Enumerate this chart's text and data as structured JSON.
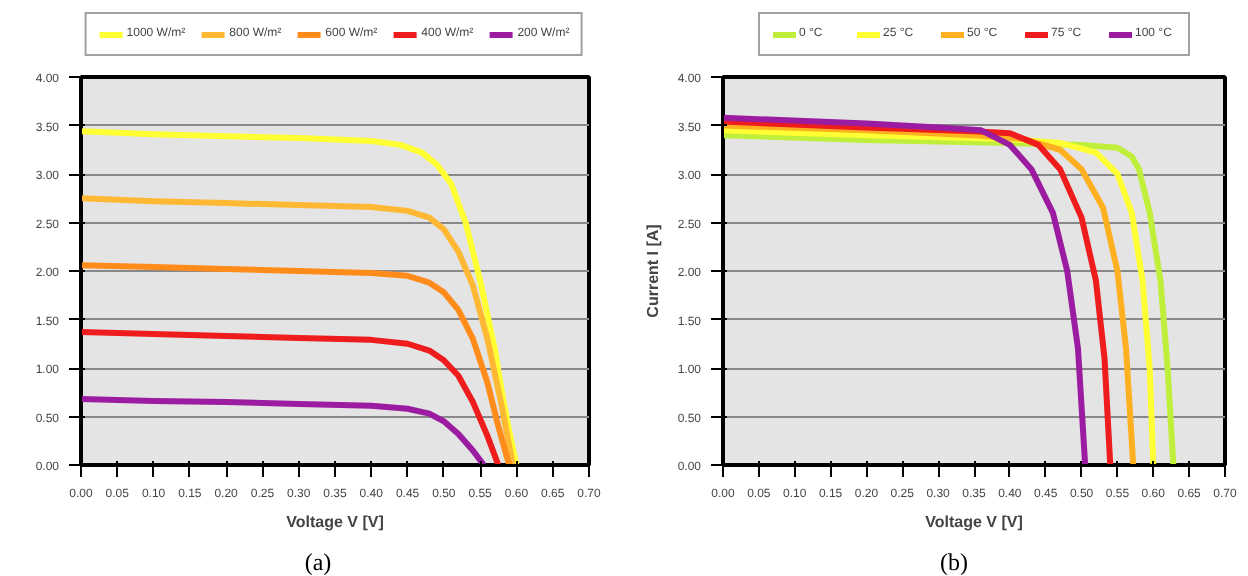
{
  "chart_data": [
    {
      "type": "line",
      "xlabel": "Voltage V [V]",
      "annotations": [
        "(a)"
      ],
      "grid": "y",
      "legend": "top",
      "xlim": [
        0,
        0.7
      ],
      "ylim": [
        0,
        4
      ],
      "xticks": [
        {
          "value": 0,
          "label": "0.00"
        },
        {
          "value": 0.05,
          "label": "0.05"
        },
        {
          "value": 0.1,
          "label": "0.10"
        },
        {
          "value": 0.15,
          "label": "0.15"
        },
        {
          "value": 0.2,
          "label": "0.20"
        },
        {
          "value": 0.25,
          "label": "0.25"
        },
        {
          "value": 0.3,
          "label": "0.30"
        },
        {
          "value": 0.35,
          "label": "0.35"
        },
        {
          "value": 0.4,
          "label": "0.40"
        },
        {
          "value": 0.45,
          "label": "0.45"
        },
        {
          "value": 0.5,
          "label": "0.50"
        },
        {
          "value": 0.55,
          "label": "0.55"
        },
        {
          "value": 0.6,
          "label": "0.60"
        },
        {
          "value": 0.65,
          "label": "0.65"
        },
        {
          "value": 0.7,
          "label": "0.70"
        }
      ],
      "yticks": [
        {
          "value": 0,
          "label": "0.00"
        },
        {
          "value": 0.5,
          "label": "0.50"
        },
        {
          "value": 1,
          "label": "1.00"
        },
        {
          "value": 1.5,
          "label": "1.50"
        },
        {
          "value": 2,
          "label": "2.00"
        },
        {
          "value": 2.5,
          "label": "2.50"
        },
        {
          "value": 3,
          "label": "3.00"
        },
        {
          "value": 3.5,
          "label": "3.50"
        },
        {
          "value": 4,
          "label": "4.00"
        }
      ],
      "series": [
        {
          "name": "1000 W/m²",
          "color": "#ffff33",
          "x": [
            0,
            0.1,
            0.2,
            0.3,
            0.4,
            0.44,
            0.47,
            0.49,
            0.51,
            0.53,
            0.55,
            0.57,
            0.58,
            0.59,
            0.6
          ],
          "values": [
            3.44,
            3.41,
            3.39,
            3.37,
            3.34,
            3.3,
            3.22,
            3.1,
            2.9,
            2.5,
            1.9,
            1.2,
            0.75,
            0.35,
            0
          ]
        },
        {
          "name": "800 W/m²",
          "color": "#ffb833",
          "x": [
            0,
            0.1,
            0.2,
            0.3,
            0.4,
            0.45,
            0.48,
            0.5,
            0.52,
            0.54,
            0.56,
            0.58,
            0.595
          ],
          "values": [
            2.75,
            2.72,
            2.7,
            2.68,
            2.66,
            2.62,
            2.55,
            2.43,
            2.2,
            1.85,
            1.3,
            0.6,
            0
          ]
        },
        {
          "name": "600 W/m²",
          "color": "#ff8c1a",
          "x": [
            0,
            0.1,
            0.2,
            0.3,
            0.4,
            0.45,
            0.48,
            0.5,
            0.52,
            0.54,
            0.56,
            0.575,
            0.59
          ],
          "values": [
            2.06,
            2.04,
            2.02,
            2.0,
            1.98,
            1.95,
            1.88,
            1.78,
            1.6,
            1.3,
            0.85,
            0.4,
            0
          ]
        },
        {
          "name": "400 W/m²",
          "color": "#ee1c1c",
          "x": [
            0,
            0.1,
            0.2,
            0.3,
            0.4,
            0.45,
            0.48,
            0.5,
            0.52,
            0.54,
            0.56,
            0.575
          ],
          "values": [
            1.37,
            1.35,
            1.33,
            1.31,
            1.29,
            1.25,
            1.18,
            1.08,
            0.92,
            0.65,
            0.3,
            0
          ]
        },
        {
          "name": "200 W/m²",
          "color": "#9b1ca0",
          "x": [
            0,
            0.1,
            0.2,
            0.3,
            0.4,
            0.45,
            0.48,
            0.5,
            0.52,
            0.54,
            0.555
          ],
          "values": [
            0.68,
            0.66,
            0.65,
            0.63,
            0.61,
            0.58,
            0.53,
            0.45,
            0.32,
            0.15,
            0
          ]
        }
      ]
    },
    {
      "type": "line",
      "xlabel": "Voltage V [V]",
      "ylabel": "Current I [A]",
      "annotations": [
        "(b)"
      ],
      "grid": "y",
      "legend": "top",
      "xlim": [
        0,
        0.7
      ],
      "ylim": [
        0,
        4
      ],
      "xticks": [
        {
          "value": 0,
          "label": "0.00"
        },
        {
          "value": 0.05,
          "label": "0.05"
        },
        {
          "value": 0.1,
          "label": "0.10"
        },
        {
          "value": 0.15,
          "label": "0.15"
        },
        {
          "value": 0.2,
          "label": "0.20"
        },
        {
          "value": 0.25,
          "label": "0.25"
        },
        {
          "value": 0.3,
          "label": "0.30"
        },
        {
          "value": 0.35,
          "label": "0.35"
        },
        {
          "value": 0.4,
          "label": "0.40"
        },
        {
          "value": 0.45,
          "label": "0.45"
        },
        {
          "value": 0.5,
          "label": "0.50"
        },
        {
          "value": 0.55,
          "label": "0.55"
        },
        {
          "value": 0.6,
          "label": "0.60"
        },
        {
          "value": 0.65,
          "label": "0.65"
        },
        {
          "value": 0.7,
          "label": "0.70"
        }
      ],
      "yticks": [
        {
          "value": 0,
          "label": "0.00"
        },
        {
          "value": 0.5,
          "label": "0.50"
        },
        {
          "value": 1,
          "label": "1.00"
        },
        {
          "value": 1.5,
          "label": "1.50"
        },
        {
          "value": 2,
          "label": "2.00"
        },
        {
          "value": 2.5,
          "label": "2.50"
        },
        {
          "value": 3,
          "label": "3.00"
        },
        {
          "value": 3.5,
          "label": "3.50"
        },
        {
          "value": 4,
          "label": "4.00"
        }
      ],
      "series": [
        {
          "name": "0 °C",
          "color": "#bfef3a",
          "x": [
            0,
            0.2,
            0.4,
            0.5,
            0.55,
            0.57,
            0.58,
            0.595,
            0.61,
            0.62,
            0.628
          ],
          "values": [
            3.4,
            3.35,
            3.32,
            3.3,
            3.27,
            3.18,
            3.05,
            2.6,
            1.9,
            1.0,
            0
          ]
        },
        {
          "name": "25 °C",
          "color": "#ffff33",
          "x": [
            0,
            0.2,
            0.4,
            0.47,
            0.52,
            0.55,
            0.57,
            0.585,
            0.595,
            0.6
          ],
          "values": [
            3.45,
            3.4,
            3.36,
            3.32,
            3.22,
            3.0,
            2.6,
            1.9,
            1.0,
            0
          ]
        },
        {
          "name": "50 °C",
          "color": "#ffb020",
          "x": [
            0,
            0.2,
            0.35,
            0.42,
            0.47,
            0.5,
            0.53,
            0.55,
            0.562,
            0.572
          ],
          "values": [
            3.5,
            3.45,
            3.4,
            3.36,
            3.25,
            3.05,
            2.65,
            2.0,
            1.2,
            0
          ]
        },
        {
          "name": "75 °C",
          "color": "#ee1c1c",
          "x": [
            0,
            0.2,
            0.35,
            0.4,
            0.44,
            0.47,
            0.5,
            0.52,
            0.532,
            0.54
          ],
          "values": [
            3.54,
            3.48,
            3.44,
            3.42,
            3.3,
            3.05,
            2.55,
            1.9,
            1.1,
            0
          ]
        },
        {
          "name": "100 °C",
          "color": "#9b1ca0",
          "x": [
            0,
            0.2,
            0.3,
            0.36,
            0.4,
            0.43,
            0.46,
            0.48,
            0.495,
            0.505
          ],
          "values": [
            3.58,
            3.52,
            3.48,
            3.45,
            3.3,
            3.05,
            2.6,
            2.0,
            1.2,
            0
          ]
        }
      ]
    }
  ]
}
